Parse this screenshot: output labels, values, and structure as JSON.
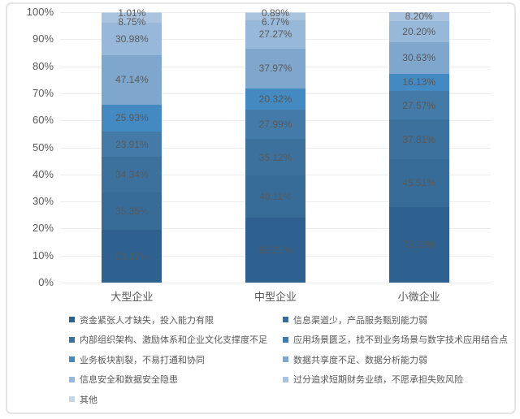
{
  "chart_data": {
    "type": "bar",
    "subtype": "stacked-100-percent",
    "title": "",
    "xlabel": "",
    "ylabel": "",
    "categories": [
      "大型企业",
      "中型企业",
      "小微企业"
    ],
    "series": [
      {
        "name": "资金紧张人才缺失，投入能力有限",
        "color": "#2E6190",
        "values": [
          50.17,
          62.21,
          72.38
        ]
      },
      {
        "name": "信息渠道少，产品服务甄别能力弱",
        "color": "#376C99",
        "values": [
          35.35,
          40.11,
          45.51
        ]
      },
      {
        "name": "内部组织架构、激励体系和企业文化支撑度不足",
        "color": "#3C719E",
        "values": [
          34.34,
          35.12,
          37.81
        ]
      },
      {
        "name": "应用场景匮乏，找不到业务场景与数字技术应用结合点",
        "color": "#447AA8",
        "values": [
          23.91,
          27.99,
          27.57
        ]
      },
      {
        "name": "业务板块割裂，不易打通和协同",
        "color": "#4389C2",
        "values": [
          25.93,
          20.32,
          16.13
        ]
      },
      {
        "name": "数据共享度不足、数据分析能力弱",
        "color": "#7FA6CD",
        "values": [
          47.14,
          37.97,
          30.63
        ]
      },
      {
        "name": "信息安全和数据安全隐患",
        "color": "#97B8D9",
        "values": [
          30.98,
          27.27,
          20.2
        ]
      },
      {
        "name": "过分追求短期财务业绩，不愿承担失败风险",
        "color": "#A9C3DF",
        "values": [
          8.75,
          6.77,
          8.2
        ]
      },
      {
        "name": "其他",
        "color": "#C8D6E9",
        "values": [
          1.01,
          0.89,
          null
        ]
      }
    ],
    "y_axis": {
      "min": 0,
      "max": 100,
      "ticks": [
        "0%",
        "10%",
        "20%",
        "30%",
        "40%",
        "50%",
        "60%",
        "70%",
        "80%",
        "90%",
        "100%"
      ]
    },
    "grid": true,
    "legend_position": "bottom",
    "legend_columns": [
      [
        0,
        2,
        4,
        6,
        8
      ],
      [
        1,
        3,
        5,
        7
      ]
    ],
    "value_label_decimals": 2,
    "value_label_suffix": "%",
    "colors": {
      "label_text": "#595959",
      "grid_line": "#ededed",
      "frame_border": "#e5e5e5",
      "background": "#ffffff"
    }
  }
}
